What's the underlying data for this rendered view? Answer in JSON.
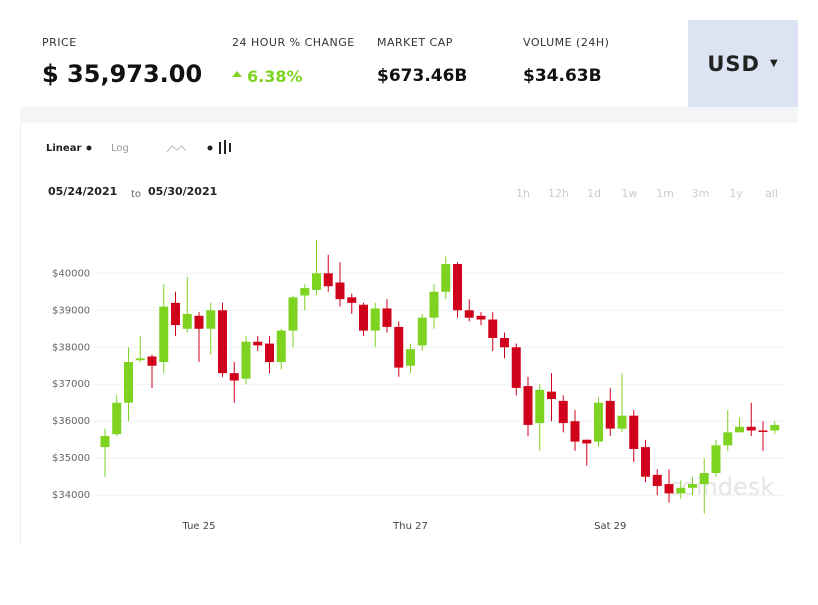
{
  "header": {
    "price": {
      "label": "PRICE",
      "value": "$ 35,973.00"
    },
    "change": {
      "label": "24 HOUR % CHANGE",
      "value": "6.38%"
    },
    "market_cap": {
      "label": "MARKET CAP",
      "value": "$673.46B"
    },
    "volume": {
      "label": "VOLUME (24H)",
      "value": "$34.63B"
    },
    "currency": "USD"
  },
  "controls": {
    "scales": [
      "Linear",
      "Log"
    ],
    "date_range": {
      "start": "05/24/2021",
      "separator": "to",
      "end": "05/30/2021"
    },
    "intervals": [
      "1h",
      "12h",
      "1d",
      "1w",
      "1m",
      "3m",
      "1y",
      "all"
    ]
  },
  "watermark": "coindesk",
  "chart_data": {
    "type": "candlestick",
    "categories": [
      null,
      null,
      null,
      null,
      null,
      null,
      null,
      null,
      "Tue 25",
      null,
      null,
      null,
      null,
      null,
      null,
      null,
      null,
      null,
      null,
      null,
      null,
      null,
      null,
      null,
      null,
      null,
      "Thu 27",
      null,
      null,
      null,
      null,
      null,
      null,
      null,
      null,
      null,
      null,
      null,
      null,
      null,
      null,
      null,
      null,
      "Sat 29",
      null,
      null,
      null,
      null,
      null,
      null,
      null,
      null,
      null,
      null,
      null,
      null,
      null,
      null
    ],
    "open": [
      35300,
      35650,
      36500,
      37650,
      37750,
      37600,
      39200,
      38500,
      38850,
      38500,
      39000,
      37300,
      37150,
      38150,
      38100,
      37600,
      38450,
      39400,
      39550,
      40000,
      39750,
      39350,
      39150,
      38450,
      39050,
      38550,
      37500,
      38050,
      38800,
      39500,
      40250,
      39000,
      38850,
      38750,
      38250,
      38000,
      36950,
      35950,
      36800,
      36550,
      36000,
      35500,
      35450,
      36550,
      35800,
      36150,
      35300,
      34550,
      34300,
      34050,
      34200,
      34300,
      34600,
      35350,
      35700,
      35850,
      35750,
      35750
    ],
    "high": [
      35800,
      36700,
      38000,
      38300,
      37800,
      39700,
      39500,
      39900,
      38950,
      39200,
      39200,
      37600,
      38300,
      38300,
      38300,
      38500,
      39400,
      39700,
      40900,
      40500,
      40300,
      39450,
      39200,
      39200,
      39300,
      38700,
      38100,
      38900,
      39700,
      40450,
      40300,
      39300,
      38950,
      38950,
      38400,
      38100,
      37200,
      37000,
      37300,
      36700,
      36300,
      35500,
      36650,
      36900,
      37300,
      36300,
      35500,
      34700,
      34700,
      34400,
      34500,
      35000,
      35500,
      36300,
      36100,
      36500,
      36000,
      36000
    ],
    "low": [
      34500,
      35600,
      36000,
      37600,
      36900,
      37300,
      38300,
      38400,
      37600,
      37800,
      37200,
      36500,
      37000,
      37900,
      37300,
      37400,
      38000,
      39000,
      39400,
      39500,
      39100,
      38900,
      38300,
      38000,
      38400,
      37200,
      37300,
      37900,
      38500,
      39300,
      38800,
      38700,
      38600,
      37900,
      37700,
      36700,
      35600,
      35200,
      36000,
      35700,
      35200,
      34800,
      35300,
      35600,
      35700,
      34900,
      34350,
      34000,
      33800,
      33900,
      34000,
      33500,
      34500,
      35200,
      35700,
      35600,
      35200,
      35650
    ],
    "close": [
      35600,
      36500,
      37600,
      37700,
      37500,
      39100,
      38600,
      38900,
      38500,
      39000,
      37300,
      37100,
      38150,
      38050,
      37600,
      38450,
      39350,
      39600,
      40000,
      39650,
      39300,
      39200,
      38450,
      39050,
      38550,
      37450,
      37950,
      38800,
      39500,
      40250,
      39000,
      38800,
      38750,
      38250,
      38000,
      36900,
      35900,
      36850,
      36600,
      35950,
      35450,
      35400,
      36500,
      35800,
      36150,
      35250,
      34500,
      34250,
      34050,
      34200,
      34300,
      34600,
      35350,
      35700,
      35850,
      35750,
      35720,
      35900
    ],
    "up_color": "#7ed321",
    "down_color": "#d0021b",
    "ylim": [
      33600,
      40900
    ],
    "yticks": [
      {
        "value": 34000,
        "label": "$34000"
      },
      {
        "value": 35000,
        "label": "$35000"
      },
      {
        "value": 36000,
        "label": "$36000"
      },
      {
        "value": 37000,
        "label": "$37000"
      },
      {
        "value": 38000,
        "label": "$38000"
      },
      {
        "value": 39000,
        "label": "$39000"
      },
      {
        "value": 40000,
        "label": "$40000"
      }
    ],
    "grid": true
  }
}
